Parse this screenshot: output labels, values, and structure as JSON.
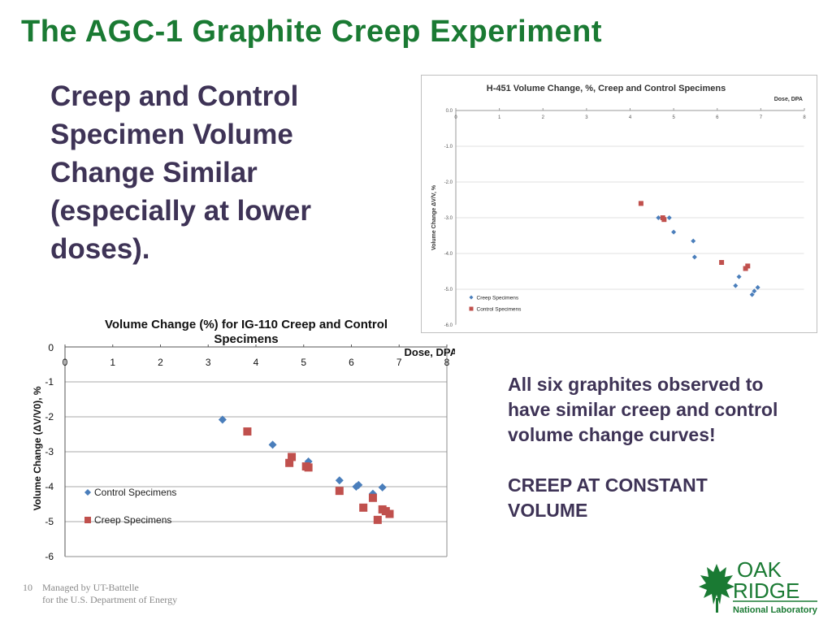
{
  "slide": {
    "title": "The AGC-1 Graphite Creep Experiment",
    "lead_text": "Creep and Control Specimen Volume Change Similar (especially at lower doses).",
    "note_line1": "All six graphites observed to have similar creep and control volume change curves!",
    "note_line2": "CREEP AT CONSTANT VOLUME",
    "page_number": "10",
    "footer_line1": "Managed by UT-Battelle",
    "footer_line2": "for the U.S. Department of Energy",
    "logo": {
      "word1": "OAK",
      "word2": "RIDGE",
      "sub": "National Laboratory",
      "icon": "leaf-icon"
    }
  },
  "chart_data": [
    {
      "type": "scatter",
      "title": "H-451 Volume Change, %, Creep and Control Specimens",
      "xlabel": "Dose, DPA",
      "ylabel": "Volume Change ΔV/V, %",
      "xlim": [
        0,
        8
      ],
      "ylim": [
        -6,
        0
      ],
      "x_ticks": [
        "0",
        "1",
        "2",
        "3",
        "4",
        "5",
        "6",
        "7",
        "8"
      ],
      "y_ticks": [
        "0.0",
        "-1.0",
        "-2.0",
        "-3.0",
        "-4.0",
        "-5.0",
        "-6.0"
      ],
      "grid": true,
      "legend_position": "bottom-left",
      "series": [
        {
          "name": "Creep Specimens",
          "marker": "diamond",
          "color": "#4a7ebb",
          "x": [
            4.65,
            4.9,
            5.0,
            5.45,
            5.48,
            6.42,
            6.5,
            6.8,
            6.85,
            6.93
          ],
          "y": [
            -3.0,
            -3.0,
            -3.4,
            -3.65,
            -4.1,
            -4.9,
            -4.65,
            -5.15,
            -5.05,
            -4.95
          ]
        },
        {
          "name": "Control Specimens",
          "marker": "square",
          "color": "#c0504d",
          "x": [
            4.25,
            4.75,
            4.78,
            6.1,
            6.65,
            6.7
          ],
          "y": [
            -2.6,
            -3.0,
            -3.05,
            -4.25,
            -4.42,
            -4.35
          ]
        }
      ]
    },
    {
      "type": "scatter",
      "title": "Volume Change (%) for IG-110 Creep and Control Specimens",
      "xlabel": "Dose, DPA",
      "ylabel": "Volume Change (ΔV/V0), %",
      "xlim": [
        0,
        8
      ],
      "ylim": [
        -6,
        0
      ],
      "x_ticks": [
        "0",
        "1",
        "2",
        "3",
        "4",
        "5",
        "6",
        "7",
        "8"
      ],
      "y_ticks": [
        "0",
        "-1",
        "-2",
        "-3",
        "-4",
        "-5",
        "-6"
      ],
      "grid": true,
      "legend_position": "left",
      "series": [
        {
          "name": "Control Specimens",
          "marker": "diamond",
          "color": "#4a7ebb",
          "x": [
            3.3,
            4.35,
            5.1,
            5.75,
            6.1,
            6.15,
            6.45,
            6.65
          ],
          "y": [
            -2.08,
            -2.8,
            -3.28,
            -3.82,
            -4.0,
            -3.95,
            -4.2,
            -4.02
          ]
        },
        {
          "name": "Creep Specimens",
          "marker": "square",
          "color": "#c0504d",
          "x": [
            3.82,
            4.7,
            4.75,
            5.05,
            5.1,
            5.75,
            6.25,
            6.45,
            6.55,
            6.65,
            6.72,
            6.8
          ],
          "y": [
            -2.42,
            -3.32,
            -3.15,
            -3.42,
            -3.45,
            -4.12,
            -4.6,
            -4.32,
            -4.95,
            -4.65,
            -4.7,
            -4.78
          ]
        }
      ]
    }
  ]
}
